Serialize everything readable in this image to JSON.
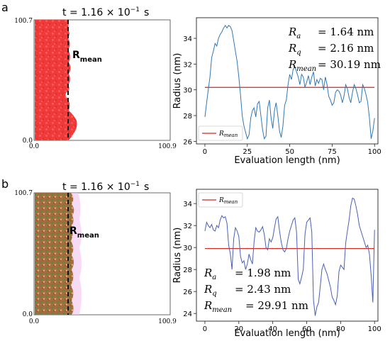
{
  "panels": [
    {
      "label": "a",
      "sim": {
        "time": "t = 1.16 × 10",
        "time_exp": "−1",
        "time_unit": "s",
        "y_max_label": "100.7",
        "y_min_label": "0.0",
        "x_min_label": "0.0",
        "x_max_label": "100.9",
        "rmean_main": "R",
        "rmean_sub": "mean"
      },
      "stats": [
        {
          "sym": "R",
          "sub": "a",
          "value": "= 1.64 nm"
        },
        {
          "sym": "R",
          "sub": "q",
          "value": "= 2.16 nm"
        },
        {
          "sym": "R",
          "sub": "mean",
          "value": "= 30.19 nm"
        }
      ],
      "legend_sym": "R",
      "legend_sub": "mean"
    },
    {
      "label": "b",
      "sim": {
        "time": "t = 1.16 × 10",
        "time_exp": "−1",
        "time_unit": "s",
        "y_max_label": "100.7",
        "y_min_label": "0.0",
        "x_min_label": "0.0",
        "x_max_label": "100.9",
        "rmean_main": "R",
        "rmean_sub": "mean"
      },
      "stats": [
        {
          "sym": "R",
          "sub": "a",
          "value": "= 1.98 nm"
        },
        {
          "sym": "R",
          "sub": "q",
          "value": "= 2.43 nm"
        },
        {
          "sym": "R",
          "sub": "mean",
          "value": "= 29.91 nm"
        }
      ],
      "legend_sym": "R",
      "legend_sub": "mean"
    }
  ],
  "colors": {
    "particle_red": "#f03a3a",
    "particle_brown": "#9b6a3c",
    "line_blue": "#2f78b7",
    "line_blue_b": "#4a5fb5",
    "mean_red": "#d6281f",
    "glow_b": "#f3c6ee"
  },
  "chart_data": [
    {
      "type": "line",
      "title": "",
      "xlabel": "Evaluation length (nm)",
      "ylabel": "Radius (nm)",
      "xlim": [
        -5,
        102
      ],
      "ylim": [
        25.8,
        35.6
      ],
      "x_ticks": [
        0,
        25,
        50,
        75,
        100
      ],
      "y_ticks": [
        26,
        28,
        30,
        32,
        34
      ],
      "legend_position": "lower-left",
      "series": [
        {
          "name": "R_mean",
          "kind": "hline",
          "value": 30.19
        },
        {
          "kind": "line",
          "x": [
            0,
            1,
            2,
            3,
            4,
            5,
            6,
            7,
            8,
            9,
            10,
            11,
            12,
            13,
            14,
            15,
            16,
            17,
            18,
            19,
            20,
            21,
            22,
            23,
            24,
            25,
            26,
            27,
            28,
            29,
            30,
            31,
            32,
            33,
            34,
            35,
            36,
            37,
            38,
            39,
            40,
            41,
            42,
            43,
            44,
            45,
            46,
            47,
            48,
            49,
            50,
            51,
            52,
            53,
            54,
            55,
            56,
            57,
            58,
            59,
            60,
            61,
            62,
            63,
            64,
            65,
            66,
            67,
            68,
            69,
            70,
            71,
            72,
            73,
            74,
            75,
            76,
            77,
            78,
            79,
            80,
            81,
            82,
            83,
            84,
            85,
            86,
            87,
            88,
            89,
            90,
            91,
            92,
            93,
            94,
            95,
            96,
            97,
            98,
            99,
            100
          ],
          "y": [
            27.9,
            29.0,
            30.0,
            31.0,
            32.5,
            33.0,
            33.6,
            33.4,
            34.0,
            34.3,
            34.5,
            34.8,
            35.0,
            34.8,
            35.0,
            34.9,
            34.6,
            33.8,
            33.0,
            32.2,
            31.0,
            29.6,
            28.0,
            27.2,
            26.7,
            26.2,
            26.5,
            27.8,
            28.4,
            28.6,
            27.9,
            28.9,
            29.1,
            28.0,
            26.9,
            26.2,
            26.4,
            28.6,
            29.2,
            27.8,
            27.0,
            28.4,
            29.0,
            28.0,
            26.8,
            26.3,
            27.2,
            28.8,
            29.2,
            30.4,
            31.2,
            30.8,
            31.6,
            31.8,
            31.4,
            31.0,
            30.4,
            31.2,
            31.0,
            30.2,
            30.6,
            31.1,
            30.4,
            31.0,
            31.4,
            30.3,
            30.8,
            30.5,
            30.9,
            30.8,
            30.0,
            31.0,
            30.4,
            29.5,
            29.2,
            28.8,
            29.0,
            29.8,
            30.0,
            29.9,
            29.6,
            29.0,
            29.5,
            30.4,
            30.1,
            29.4,
            29.0,
            29.8,
            30.4,
            30.1,
            29.6,
            29.0,
            29.1,
            30.4,
            30.1,
            29.6,
            29.0,
            27.8,
            26.2,
            26.8,
            27.8
          ]
        }
      ]
    },
    {
      "type": "line",
      "title": "",
      "xlabel": "Evaluation length (nm)",
      "ylabel": "Radius (nm)",
      "xlim": [
        -5,
        102
      ],
      "ylim": [
        23.3,
        35.3
      ],
      "x_ticks": [
        0,
        20,
        40,
        60,
        80,
        100
      ],
      "y_ticks": [
        24,
        26,
        28,
        30,
        32,
        34
      ],
      "legend_position": "upper-left",
      "series": [
        {
          "name": "R_mean",
          "kind": "hline",
          "value": 29.91
        },
        {
          "kind": "line",
          "x": [
            0,
            1,
            2,
            3,
            4,
            5,
            6,
            7,
            8,
            9,
            10,
            11,
            12,
            13,
            14,
            15,
            16,
            17,
            18,
            19,
            20,
            21,
            22,
            23,
            24,
            25,
            26,
            27,
            28,
            29,
            30,
            31,
            32,
            33,
            34,
            35,
            36,
            37,
            38,
            39,
            40,
            41,
            42,
            43,
            44,
            45,
            46,
            47,
            48,
            49,
            50,
            51,
            52,
            53,
            54,
            55,
            56,
            57,
            58,
            59,
            60,
            61,
            62,
            63,
            64,
            65,
            66,
            67,
            68,
            69,
            70,
            71,
            72,
            73,
            74,
            75,
            76,
            77,
            78,
            79,
            80,
            81,
            82,
            83,
            84,
            85,
            86,
            87,
            88,
            89,
            90,
            91,
            92,
            93,
            94,
            95,
            96,
            97,
            98,
            99,
            100
          ],
          "y": [
            31.5,
            32.3,
            32.0,
            31.8,
            32.1,
            31.6,
            31.5,
            32.0,
            31.8,
            32.5,
            32.9,
            32.7,
            32.8,
            32.2,
            30.2,
            29.4,
            28.0,
            30.8,
            31.8,
            31.5,
            31.0,
            29.2,
            28.6,
            28.8,
            28.0,
            28.5,
            29.4,
            28.9,
            28.5,
            30.5,
            31.8,
            31.5,
            31.4,
            31.6,
            31.9,
            31.2,
            30.0,
            29.8,
            30.8,
            30.5,
            30.9,
            31.8,
            32.6,
            32.8,
            31.5,
            30.5,
            29.8,
            29.6,
            29.9,
            30.8,
            31.5,
            32.0,
            32.5,
            32.7,
            31.4,
            27.1,
            26.7,
            27.3,
            28.0,
            31.2,
            32.3,
            32.5,
            32.7,
            31.4,
            25.2,
            23.8,
            24.6,
            25.0,
            26.5,
            28.0,
            28.5,
            28.0,
            27.6,
            27.0,
            26.4,
            25.5,
            25.2,
            24.8,
            25.6,
            27.8,
            28.4,
            28.2,
            28.0,
            30.4,
            31.5,
            32.5,
            33.8,
            34.5,
            34.4,
            33.8,
            33.0,
            32.0,
            31.5,
            31.0,
            30.5,
            30.0,
            30.2,
            29.4,
            27.5,
            25.0,
            31.6
          ]
        }
      ]
    }
  ]
}
